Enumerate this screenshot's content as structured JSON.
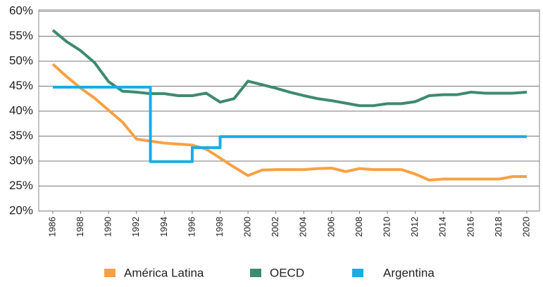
{
  "chart_data": {
    "type": "line",
    "series": [
      {
        "name": "América Latina",
        "color": "#f7a144",
        "x": [
          1986,
          1987,
          1988,
          1989,
          1990,
          1991,
          1992,
          1993,
          1994,
          1995,
          1996,
          1997,
          1998,
          1999,
          2000,
          2001,
          2002,
          2003,
          2004,
          2005,
          2006,
          2007,
          2008,
          2009,
          2010,
          2011,
          2012,
          2013,
          2014,
          2015,
          2016,
          2017,
          2018,
          2019,
          2020
        ],
        "values": [
          49.4,
          46.9,
          44.6,
          42.6,
          40.2,
          37.8,
          34.4,
          34.0,
          33.6,
          33.4,
          33.2,
          32.4,
          30.6,
          28.8,
          27.1,
          28.2,
          28.3,
          28.3,
          28.3,
          28.5,
          28.6,
          27.9,
          28.5,
          28.3,
          28.3,
          28.3,
          27.4,
          26.2,
          26.4,
          26.4,
          26.4,
          26.4,
          26.4,
          26.9,
          26.9
        ]
      },
      {
        "name": "OECD",
        "color": "#3e8a6f",
        "x": [
          1986,
          1987,
          1988,
          1989,
          1990,
          1991,
          1992,
          1993,
          1994,
          1995,
          1996,
          1997,
          1998,
          1999,
          2000,
          2001,
          2002,
          2003,
          2004,
          2005,
          2006,
          2007,
          2008,
          2009,
          2010,
          2011,
          2012,
          2013,
          2014,
          2015,
          2016,
          2017,
          2018,
          2019,
          2020
        ],
        "values": [
          56.2,
          53.9,
          52.1,
          49.7,
          45.9,
          44.0,
          43.8,
          43.5,
          43.5,
          43.1,
          43.1,
          43.6,
          41.8,
          42.5,
          46.0,
          45.3,
          44.6,
          43.8,
          43.1,
          42.5,
          42.1,
          41.6,
          41.1,
          41.1,
          41.5,
          41.5,
          41.9,
          43.1,
          43.3,
          43.3,
          43.8,
          43.6,
          43.6,
          43.6,
          43.8
        ]
      },
      {
        "name": "Argentina",
        "color": "#1aace4",
        "x": [
          1986,
          1993,
          1993,
          1996,
          1996,
          1998,
          1998,
          2020
        ],
        "values": [
          44.8,
          44.8,
          29.9,
          29.9,
          32.7,
          32.7,
          34.9,
          34.9
        ]
      }
    ],
    "xlim": [
      1986,
      2020
    ],
    "xticks": [
      1986,
      1988,
      1990,
      1992,
      1994,
      1996,
      1998,
      2000,
      2002,
      2004,
      2006,
      2008,
      2010,
      2012,
      2014,
      2016,
      2018,
      2020
    ],
    "ylim": [
      20,
      60
    ],
    "yticks": [
      {
        "value": 60,
        "label": "60%"
      },
      {
        "value": 55,
        "label": "55%"
      },
      {
        "value": 50,
        "label": "50%"
      },
      {
        "value": 45,
        "label": "45%"
      },
      {
        "value": 40,
        "label": "40%"
      },
      {
        "value": 35,
        "label": "35%"
      },
      {
        "value": 30,
        "label": "30%"
      },
      {
        "value": 25,
        "label": "25%"
      },
      {
        "value": 20,
        "label": "20%"
      }
    ],
    "grid": true,
    "legend": "bottom"
  }
}
